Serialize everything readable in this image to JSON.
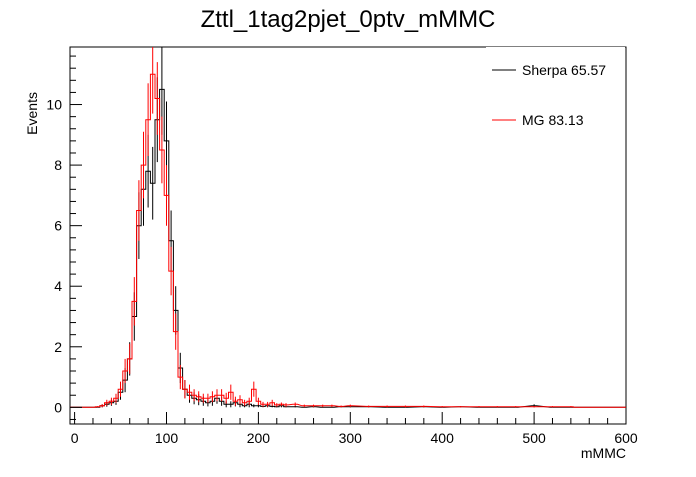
{
  "chart_data": {
    "type": "line",
    "title": "Zttl_1tag2pjet_0ptv_mMMC",
    "xlabel": "mMMC",
    "ylabel": "Events",
    "xlim": [
      -5,
      600
    ],
    "ylim": [
      -0.55,
      11.9
    ],
    "xticks": [
      0,
      100,
      200,
      300,
      400,
      500,
      600
    ],
    "yticks": [
      0,
      2,
      4,
      6,
      8,
      10
    ],
    "bin_width": 5,
    "grid": false,
    "legend_position": "top-right",
    "series": [
      {
        "name": "Sherpa 65.57",
        "color": "#000000",
        "x": [
          25,
          30,
          35,
          40,
          45,
          50,
          55,
          60,
          65,
          70,
          75,
          80,
          85,
          90,
          95,
          100,
          105,
          110,
          115,
          120,
          125,
          130,
          135,
          140,
          145,
          150,
          155,
          160,
          165,
          170,
          175,
          180,
          185,
          190,
          195,
          200,
          205,
          210,
          215,
          220,
          225,
          230,
          240,
          250,
          260,
          270,
          280,
          290,
          300,
          320,
          340,
          360,
          380,
          400,
          420,
          440,
          460,
          480,
          500,
          520,
          540
        ],
        "values": [
          0.0,
          0.05,
          0.1,
          0.15,
          0.2,
          0.5,
          0.9,
          1.6,
          3.0,
          6.0,
          7.2,
          7.8,
          7.4,
          9.5,
          10.5,
          8.8,
          5.5,
          3.2,
          1.3,
          0.6,
          0.4,
          0.3,
          0.25,
          0.2,
          0.15,
          0.2,
          0.3,
          0.2,
          0.1,
          0.1,
          0.15,
          0.1,
          0.05,
          0.1,
          0.05,
          0.05,
          0.03,
          0.05,
          0.03,
          0.02,
          0.05,
          0.02,
          0.02,
          0.0,
          0.02,
          0.0,
          0.0,
          0.02,
          0.02,
          0.02,
          0.0,
          0.0,
          0.02,
          0.0,
          0.02,
          0.0,
          0.0,
          0.0,
          0.05,
          0.0,
          0.0
        ],
        "errors": [
          0.0,
          0.05,
          0.08,
          0.1,
          0.12,
          0.25,
          0.4,
          0.55,
          0.8,
          1.1,
          1.2,
          1.2,
          1.2,
          1.4,
          1.5,
          1.3,
          1.0,
          0.8,
          0.5,
          0.3,
          0.25,
          0.2,
          0.18,
          0.15,
          0.12,
          0.15,
          0.18,
          0.15,
          0.1,
          0.1,
          0.12,
          0.1,
          0.05,
          0.1,
          0.05,
          0.05,
          0.03,
          0.05,
          0.03,
          0.02,
          0.05,
          0.02,
          0.02,
          0.0,
          0.02,
          0.0,
          0.0,
          0.02,
          0.02,
          0.02,
          0.0,
          0.0,
          0.02,
          0.0,
          0.02,
          0.0,
          0.0,
          0.0,
          0.05,
          0.0,
          0.0
        ]
      },
      {
        "name": "MG 83.13",
        "color": "#ff0000",
        "x": [
          25,
          30,
          35,
          40,
          45,
          50,
          55,
          60,
          65,
          70,
          75,
          80,
          85,
          90,
          95,
          100,
          105,
          110,
          115,
          120,
          125,
          130,
          135,
          140,
          145,
          150,
          155,
          160,
          165,
          170,
          175,
          180,
          185,
          190,
          195,
          200,
          205,
          210,
          215,
          220,
          225,
          230,
          240,
          250,
          260,
          270,
          280,
          290,
          300,
          320,
          340,
          360,
          380,
          400,
          420,
          440,
          460,
          480,
          500,
          520,
          540
        ],
        "values": [
          0.02,
          0.05,
          0.15,
          0.2,
          0.3,
          0.6,
          1.2,
          1.6,
          3.5,
          6.5,
          8.0,
          9.5,
          11.0,
          10.2,
          8.5,
          7.0,
          4.5,
          2.5,
          1.0,
          0.6,
          0.5,
          0.4,
          0.35,
          0.3,
          0.3,
          0.35,
          0.4,
          0.4,
          0.3,
          0.5,
          0.2,
          0.25,
          0.15,
          0.2,
          0.6,
          0.2,
          0.1,
          0.1,
          0.15,
          0.08,
          0.1,
          0.08,
          0.1,
          0.05,
          0.05,
          0.05,
          0.05,
          0.03,
          0.05,
          0.03,
          0.03,
          0.03,
          0.03,
          0.02,
          0.02,
          0.02,
          0.02,
          0.02,
          0.02,
          0.02,
          0.02
        ],
        "errors": [
          0.02,
          0.05,
          0.1,
          0.12,
          0.15,
          0.25,
          0.4,
          0.5,
          0.8,
          1.0,
          1.1,
          1.2,
          1.3,
          1.2,
          1.1,
          1.0,
          0.8,
          0.6,
          0.4,
          0.3,
          0.25,
          0.2,
          0.18,
          0.15,
          0.15,
          0.18,
          0.2,
          0.2,
          0.18,
          0.25,
          0.15,
          0.15,
          0.1,
          0.12,
          0.25,
          0.12,
          0.08,
          0.08,
          0.1,
          0.06,
          0.06,
          0.06,
          0.06,
          0.04,
          0.04,
          0.04,
          0.04,
          0.03,
          0.04,
          0.03,
          0.03,
          0.03,
          0.03,
          0.02,
          0.02,
          0.02,
          0.02,
          0.02,
          0.02,
          0.02,
          0.02
        ]
      }
    ]
  }
}
